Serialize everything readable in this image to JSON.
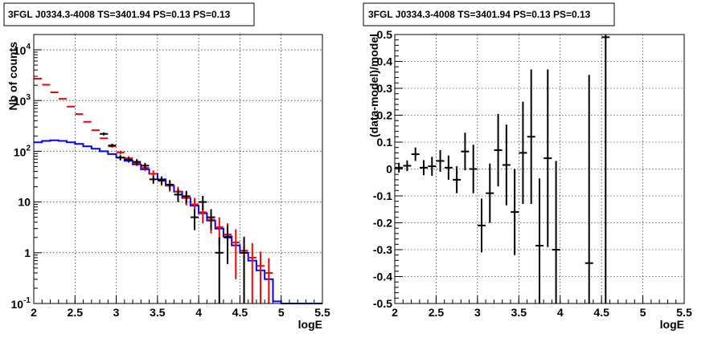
{
  "chart_data": [
    {
      "type": "scatter",
      "title": "3FGL J0334.3-4008 TS=3401.94 PS=0.13 PS=0.13",
      "xlabel": "logE",
      "ylabel": "Nb of counts",
      "xlim": [
        2,
        5.5
      ],
      "ylim": [
        0.1,
        20000
      ],
      "yscale": "log",
      "grid": true,
      "x_tick_labels": [
        "2",
        "2.5",
        "3",
        "3.5",
        "4",
        "4.5",
        "5",
        "5.5"
      ],
      "y_tick_labels": [
        {
          "value": 0.1,
          "label": "10",
          "exp": "-1"
        },
        {
          "value": 1,
          "label": "1",
          "exp": ""
        },
        {
          "value": 10,
          "label": "10",
          "exp": ""
        },
        {
          "value": 100,
          "label": "10",
          "exp": "2"
        },
        {
          "value": 1000,
          "label": "10",
          "exp": "3"
        },
        {
          "value": 10000,
          "label": "10",
          "exp": "4"
        }
      ],
      "colors": {
        "data": "#000000",
        "model_counts": "#ff0000",
        "model_histogram": "#0000ff"
      },
      "series": [
        {
          "kind": "model_counts",
          "points": [
            {
              "x": 2.05,
              "y": 2700,
              "err": 0
            },
            {
              "x": 2.15,
              "y": 2050,
              "err": 0
            },
            {
              "x": 2.25,
              "y": 1450,
              "err": 0
            },
            {
              "x": 2.35,
              "y": 1080,
              "err": 0
            },
            {
              "x": 2.45,
              "y": 760,
              "err": 0
            },
            {
              "x": 2.55,
              "y": 540,
              "err": 0
            },
            {
              "x": 2.65,
              "y": 380,
              "err": 0
            },
            {
              "x": 2.75,
              "y": 260,
              "err": 0
            },
            {
              "x": 2.85,
              "y": 180,
              "err": 0
            },
            {
              "x": 2.95,
              "y": 125,
              "err": 0
            },
            {
              "x": 3.05,
              "y": 95,
              "err": 8
            },
            {
              "x": 3.15,
              "y": 73,
              "err": 7
            },
            {
              "x": 3.25,
              "y": 58,
              "err": 7
            },
            {
              "x": 3.35,
              "y": 47,
              "err": 6
            },
            {
              "x": 3.45,
              "y": 36,
              "err": 6
            },
            {
              "x": 3.55,
              "y": 26,
              "err": 5
            },
            {
              "x": 3.65,
              "y": 21,
              "err": 5
            },
            {
              "x": 3.75,
              "y": 16,
              "err": 4
            },
            {
              "x": 3.85,
              "y": 12,
              "err": 3.5
            },
            {
              "x": 3.95,
              "y": 9,
              "err": 3
            },
            {
              "x": 4.05,
              "y": 6.3,
              "err": 2.5
            },
            {
              "x": 4.15,
              "y": 4.5,
              "err": 2.1
            },
            {
              "x": 4.25,
              "y": 3.2,
              "err": 1.8
            },
            {
              "x": 4.35,
              "y": 2.3,
              "err": 1.5
            },
            {
              "x": 4.45,
              "y": 1.6,
              "err": 1.3
            },
            {
              "x": 4.55,
              "y": 1.1,
              "err": 1.0
            },
            {
              "x": 4.65,
              "y": 0.8,
              "err": 0.75
            },
            {
              "x": 4.75,
              "y": 0.55,
              "err": 0.5
            },
            {
              "x": 4.85,
              "y": 0.4,
              "err": 0.38
            }
          ]
        },
        {
          "kind": "data",
          "points": [
            {
              "x": 2.85,
              "y": 220,
              "err": 15
            },
            {
              "x": 2.95,
              "y": 130,
              "err": 11
            },
            {
              "x": 3.05,
              "y": 75,
              "err": 9
            },
            {
              "x": 3.15,
              "y": 68,
              "err": 8
            },
            {
              "x": 3.25,
              "y": 62,
              "err": 8
            },
            {
              "x": 3.35,
              "y": 52,
              "err": 7
            },
            {
              "x": 3.45,
              "y": 28,
              "err": 5
            },
            {
              "x": 3.55,
              "y": 27,
              "err": 5
            },
            {
              "x": 3.65,
              "y": 22,
              "err": 5
            },
            {
              "x": 3.75,
              "y": 14,
              "err": 4
            },
            {
              "x": 3.85,
              "y": 13,
              "err": 3.6
            },
            {
              "x": 3.95,
              "y": 5,
              "err": 2.2
            },
            {
              "x": 4.05,
              "y": 10,
              "err": 3.2
            },
            {
              "x": 4.15,
              "y": 5,
              "err": 2.2
            },
            {
              "x": 4.25,
              "y": 1,
              "err": 1
            },
            {
              "x": 4.35,
              "y": 2,
              "err": 1.4
            },
            {
              "x": 4.55,
              "y": 1,
              "err": 1
            }
          ]
        },
        {
          "kind": "model_histogram",
          "bin_width": 0.1,
          "bins": [
            {
              "x": 2.0,
              "y": 150
            },
            {
              "x": 2.1,
              "y": 160
            },
            {
              "x": 2.2,
              "y": 165
            },
            {
              "x": 2.3,
              "y": 160
            },
            {
              "x": 2.4,
              "y": 150
            },
            {
              "x": 2.5,
              "y": 140
            },
            {
              "x": 2.6,
              "y": 125
            },
            {
              "x": 2.7,
              "y": 112
            },
            {
              "x": 2.8,
              "y": 100
            },
            {
              "x": 2.9,
              "y": 88
            },
            {
              "x": 3.0,
              "y": 75
            },
            {
              "x": 3.1,
              "y": 65
            },
            {
              "x": 3.2,
              "y": 55
            },
            {
              "x": 3.3,
              "y": 44
            },
            {
              "x": 3.4,
              "y": 36
            },
            {
              "x": 3.5,
              "y": 28
            },
            {
              "x": 3.6,
              "y": 21
            },
            {
              "x": 3.7,
              "y": 16
            },
            {
              "x": 3.8,
              "y": 12
            },
            {
              "x": 3.9,
              "y": 8.5
            },
            {
              "x": 4.0,
              "y": 6
            },
            {
              "x": 4.1,
              "y": 4.3
            },
            {
              "x": 4.2,
              "y": 3
            },
            {
              "x": 4.3,
              "y": 2.1
            },
            {
              "x": 4.4,
              "y": 1.4
            },
            {
              "x": 4.5,
              "y": 1.0
            },
            {
              "x": 4.6,
              "y": 0.7
            },
            {
              "x": 4.7,
              "y": 0.45
            },
            {
              "x": 4.8,
              "y": 0.3
            },
            {
              "x": 4.9,
              "y": 0.11
            },
            {
              "x": 5.0,
              "y": 0.1
            },
            {
              "x": 5.1,
              "y": 0.1
            },
            {
              "x": 5.2,
              "y": 0.1
            },
            {
              "x": 5.3,
              "y": 0.1
            },
            {
              "x": 5.4,
              "y": 0.1
            }
          ]
        }
      ]
    },
    {
      "type": "scatter",
      "title": "3FGL J0334.3-4008 TS=3401.94 PS=0.13 PS=0.13",
      "xlabel": "logE",
      "ylabel": "(data-model)/model",
      "xlim": [
        2,
        5.5
      ],
      "ylim": [
        -0.5,
        0.5
      ],
      "grid": true,
      "x_tick_labels": [
        "2",
        "2.5",
        "3",
        "3.5",
        "4",
        "4.5",
        "5",
        "5.5"
      ],
      "y_tick_labels": [
        "0.5",
        "0.4",
        "0.3",
        "0.2",
        "0.1",
        "0",
        "-0.1",
        "-0.2",
        "-0.3",
        "-0.4",
        "-0.5"
      ],
      "y_tick_values": [
        0.5,
        0.4,
        0.3,
        0.2,
        0.1,
        0,
        -0.1,
        -0.2,
        -0.3,
        -0.4,
        -0.5
      ],
      "colors": {
        "data": "#000000"
      },
      "series": [
        {
          "kind": "residuals",
          "points": [
            {
              "x": 2.05,
              "y": 0.005,
              "err": 0.018
            },
            {
              "x": 2.15,
              "y": 0.012,
              "err": 0.02
            },
            {
              "x": 2.25,
              "y": 0.055,
              "err": 0.025
            },
            {
              "x": 2.35,
              "y": 0.005,
              "err": 0.028
            },
            {
              "x": 2.45,
              "y": 0.01,
              "err": 0.035
            },
            {
              "x": 2.55,
              "y": 0.03,
              "err": 0.04
            },
            {
              "x": 2.65,
              "y": 0.005,
              "err": 0.045
            },
            {
              "x": 2.75,
              "y": -0.04,
              "err": 0.05
            },
            {
              "x": 2.85,
              "y": 0.065,
              "err": 0.07
            },
            {
              "x": 2.95,
              "y": 0.0,
              "err": 0.09
            },
            {
              "x": 3.05,
              "y": -0.21,
              "err": 0.1
            },
            {
              "x": 3.15,
              "y": -0.09,
              "err": 0.11
            },
            {
              "x": 3.25,
              "y": 0.07,
              "err": 0.135
            },
            {
              "x": 3.35,
              "y": 0.015,
              "err": 0.15
            },
            {
              "x": 3.45,
              "y": -0.16,
              "err": 0.16
            },
            {
              "x": 3.55,
              "y": 0.06,
              "err": 0.19
            },
            {
              "x": 3.65,
              "y": 0.12,
              "err": 0.25
            },
            {
              "x": 3.75,
              "y": -0.285,
              "err": 0.25
            },
            {
              "x": 3.85,
              "y": 0.04,
              "err": 0.33
            },
            {
              "x": 3.95,
              "y": -0.3,
              "err": 0.33
            },
            {
              "x": 4.35,
              "y": -0.35,
              "err": 0.7
            },
            {
              "x": 4.55,
              "y": 0.49,
              "err": 1.0
            }
          ]
        }
      ]
    }
  ]
}
